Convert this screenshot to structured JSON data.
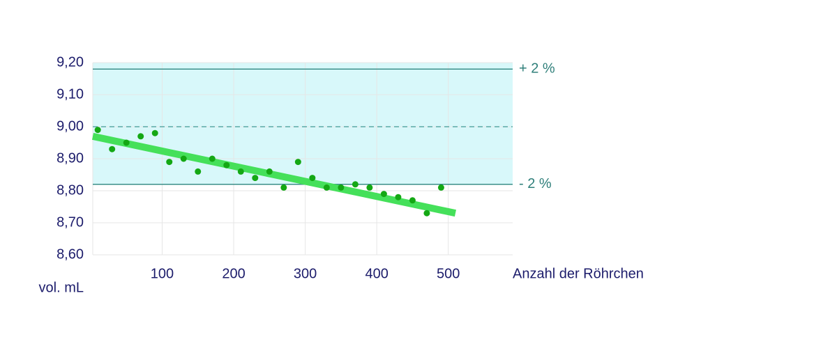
{
  "chart_data": {
    "type": "scatter",
    "x_label": "Anzahl der Röhrchen",
    "y_label": "vol. mL",
    "xlim": [
      3,
      590
    ],
    "ylim": [
      8.6,
      9.2
    ],
    "xticks": [
      100,
      200,
      300,
      400,
      500
    ],
    "yticks": [
      {
        "value": 8.6,
        "label": "8,60"
      },
      {
        "value": 8.7,
        "label": "8,70"
      },
      {
        "value": 8.8,
        "label": "8,80"
      },
      {
        "value": 8.9,
        "label": "8,90"
      },
      {
        "value": 9.0,
        "label": "9,00"
      },
      {
        "value": 9.1,
        "label": "9,10"
      },
      {
        "value": 9.2,
        "label": "9,20"
      }
    ],
    "grid": true,
    "band": {
      "from": 8.82,
      "to": 9.2,
      "color": "#d8f8fa"
    },
    "reference_lines": [
      {
        "value": 9.18,
        "label": "+ 2 %",
        "color": "#3a8f8a"
      },
      {
        "value": 9.0,
        "dashed": true,
        "color": "#5aa7a5"
      },
      {
        "value": 8.82,
        "label": "- 2 %",
        "color": "#3a8f8a"
      }
    ],
    "points": {
      "color": "#14a814",
      "x": [
        10,
        30,
        50,
        70,
        90,
        110,
        130,
        150,
        170,
        190,
        210,
        230,
        250,
        270,
        290,
        310,
        330,
        350,
        370,
        390,
        410,
        430,
        450,
        470,
        490
      ],
      "values": [
        8.99,
        8.93,
        8.95,
        8.97,
        8.98,
        8.89,
        8.9,
        8.86,
        8.9,
        8.88,
        8.86,
        8.84,
        8.86,
        8.81,
        8.89,
        8.84,
        8.81,
        8.81,
        8.82,
        8.81,
        8.79,
        8.78,
        8.77,
        8.73,
        8.81
      ]
    },
    "trend_line": {
      "color": "#45e05a",
      "x": [
        3,
        510
      ],
      "values": [
        8.97,
        8.73
      ]
    }
  }
}
